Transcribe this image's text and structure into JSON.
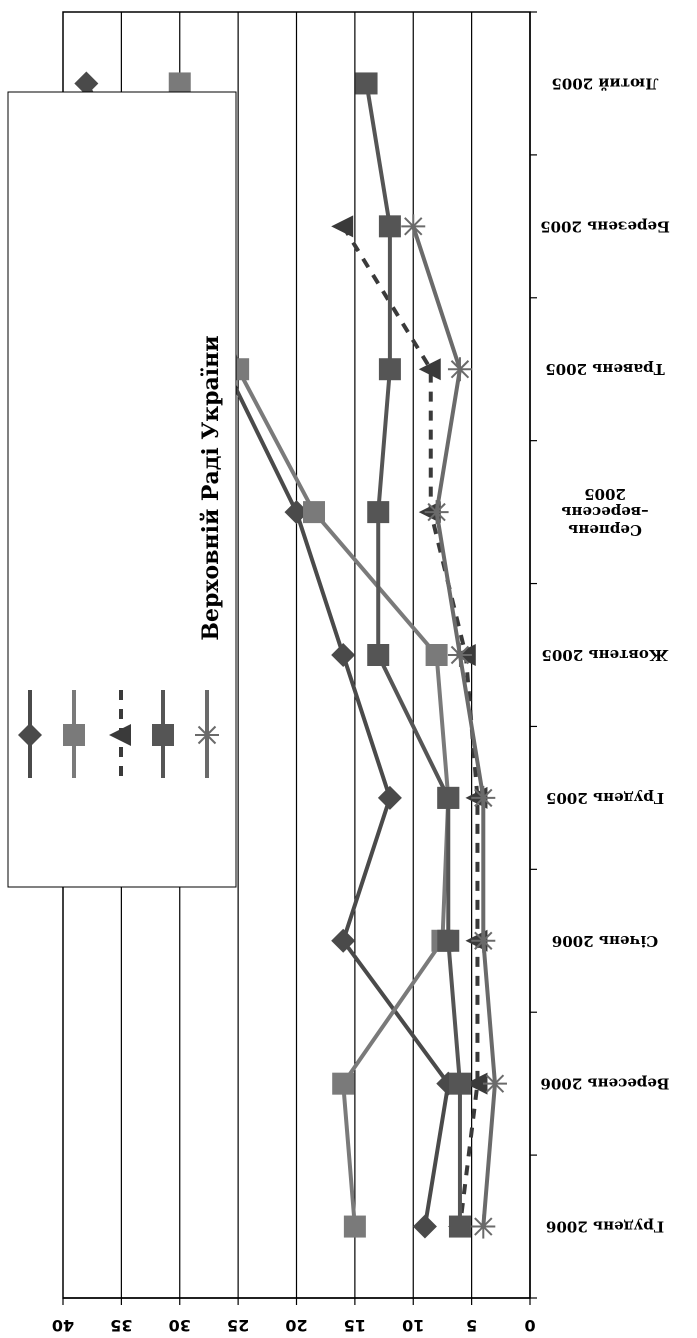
{
  "chart_data": {
    "type": "line",
    "orientation": "rotated-180",
    "categories": [
      [
        "Лютий 2005"
      ],
      [
        "Березень 2005"
      ],
      [
        "Травень 2005"
      ],
      [
        "Серпень",
        "–вересень",
        "2005"
      ],
      [
        "Жовтень 2005"
      ],
      [
        "Грудень 2005"
      ],
      [
        "Січень 2006"
      ],
      [
        "Вересень 2006"
      ],
      [
        "Грудень 2006"
      ]
    ],
    "ylim": [
      0,
      40
    ],
    "yticks": [
      "0",
      "5",
      "10",
      "15",
      "20",
      "25",
      "30",
      "35",
      "40"
    ],
    "grid": true,
    "series": [
      {
        "marker": "diamond",
        "dash": "solid",
        "color": "#4a4a4a",
        "values": [
          38,
          31,
          26,
          20,
          16,
          12,
          16,
          7,
          9
        ]
      },
      {
        "marker": "square",
        "dash": "solid",
        "color": "#7a7a7a",
        "values": [
          30,
          28,
          25,
          18.5,
          8,
          7,
          7.5,
          16,
          15
        ]
      },
      {
        "marker": "triangle",
        "dash": "dashed",
        "color": "#3a3a3a",
        "values": [
          null,
          16,
          8.5,
          8.5,
          5.5,
          4.5,
          4.5,
          4.5,
          6
        ]
      },
      {
        "marker": "square",
        "dash": "solid",
        "color": "#555555",
        "values": [
          14,
          12,
          12,
          13,
          13,
          7,
          7,
          6,
          6
        ]
      },
      {
        "marker": "asterisk",
        "dash": "solid",
        "color": "#6a6a6a",
        "values": [
          null,
          10,
          6,
          8,
          6,
          4,
          4,
          3,
          4
        ]
      }
    ],
    "legend": {
      "placement": "top-left",
      "title": "Верховній Раді України"
    }
  }
}
